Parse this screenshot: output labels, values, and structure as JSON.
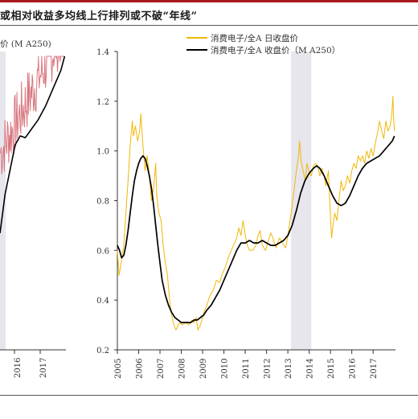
{
  "header": {
    "title_text": "或相对收益多均线上行排列或不破“年线”",
    "bar_color": "#a5191f"
  },
  "left_panel": {
    "legend_fragment": "价 (M A250)",
    "xticks": [
      "2016",
      "2017"
    ],
    "colors": {
      "daily": "#d9767f",
      "ma": "#000000"
    }
  },
  "chart_data": {
    "type": "line",
    "title": "",
    "xlabel": "",
    "ylabel": "",
    "ylim": [
      0.2,
      1.4
    ],
    "xlim": [
      2005.0,
      2018.05
    ],
    "yticks": [
      "0.2",
      "0.4",
      "0.6",
      "0.8",
      "1.0",
      "1.2",
      "1.4"
    ],
    "xticks": [
      "2005",
      "2006",
      "2007",
      "2008",
      "2009",
      "2010",
      "2011",
      "2012",
      "2013",
      "2014",
      "2015",
      "2016",
      "2017"
    ],
    "legend_position": "top",
    "shaded_periods": [
      [
        2013.15,
        2014.1
      ]
    ],
    "series": [
      {
        "name": "消费电子/全A 日收盘价",
        "color": "#f2b705",
        "points": [
          [
            2005.0,
            0.6
          ],
          [
            2005.08,
            0.5
          ],
          [
            2005.2,
            0.56
          ],
          [
            2005.3,
            0.62
          ],
          [
            2005.4,
            0.75
          ],
          [
            2005.5,
            0.88
          ],
          [
            2005.6,
            1.02
          ],
          [
            2005.7,
            1.12
          ],
          [
            2005.75,
            1.06
          ],
          [
            2005.85,
            1.1
          ],
          [
            2005.95,
            1.04
          ],
          [
            2006.05,
            1.08
          ],
          [
            2006.1,
            1.15
          ],
          [
            2006.2,
            1.02
          ],
          [
            2006.3,
            0.92
          ],
          [
            2006.4,
            0.98
          ],
          [
            2006.5,
            0.9
          ],
          [
            2006.6,
            0.8
          ],
          [
            2006.7,
            0.85
          ],
          [
            2006.8,
            0.95
          ],
          [
            2006.85,
            0.82
          ],
          [
            2006.95,
            0.75
          ],
          [
            2007.05,
            0.72
          ],
          [
            2007.15,
            0.62
          ],
          [
            2007.25,
            0.55
          ],
          [
            2007.35,
            0.5
          ],
          [
            2007.45,
            0.4
          ],
          [
            2007.55,
            0.34
          ],
          [
            2007.65,
            0.3
          ],
          [
            2007.75,
            0.28
          ],
          [
            2007.85,
            0.3
          ],
          [
            2007.95,
            0.31
          ],
          [
            2008.05,
            0.3
          ],
          [
            2008.2,
            0.31
          ],
          [
            2008.35,
            0.3
          ],
          [
            2008.5,
            0.32
          ],
          [
            2008.6,
            0.31
          ],
          [
            2008.7,
            0.33
          ],
          [
            2008.78,
            0.28
          ],
          [
            2008.9,
            0.3
          ],
          [
            2009.0,
            0.33
          ],
          [
            2009.1,
            0.36
          ],
          [
            2009.2,
            0.38
          ],
          [
            2009.35,
            0.42
          ],
          [
            2009.5,
            0.44
          ],
          [
            2009.65,
            0.48
          ],
          [
            2009.8,
            0.47
          ],
          [
            2009.9,
            0.5
          ],
          [
            2010.05,
            0.53
          ],
          [
            2010.2,
            0.57
          ],
          [
            2010.35,
            0.6
          ],
          [
            2010.5,
            0.63
          ],
          [
            2010.6,
            0.65
          ],
          [
            2010.7,
            0.69
          ],
          [
            2010.8,
            0.66
          ],
          [
            2010.9,
            0.72
          ],
          [
            2011.0,
            0.66
          ],
          [
            2011.1,
            0.62
          ],
          [
            2011.2,
            0.6
          ],
          [
            2011.35,
            0.6
          ],
          [
            2011.5,
            0.62
          ],
          [
            2011.6,
            0.66
          ],
          [
            2011.7,
            0.68
          ],
          [
            2011.8,
            0.62
          ],
          [
            2011.95,
            0.6
          ],
          [
            2012.05,
            0.63
          ],
          [
            2012.2,
            0.67
          ],
          [
            2012.3,
            0.65
          ],
          [
            2012.45,
            0.61
          ],
          [
            2012.6,
            0.65
          ],
          [
            2012.75,
            0.63
          ],
          [
            2012.9,
            0.61
          ],
          [
            2013.0,
            0.66
          ],
          [
            2013.1,
            0.72
          ],
          [
            2013.2,
            0.78
          ],
          [
            2013.3,
            0.85
          ],
          [
            2013.4,
            0.92
          ],
          [
            2013.5,
            0.98
          ],
          [
            2013.55,
            1.04
          ],
          [
            2013.62,
            0.96
          ],
          [
            2013.72,
            0.92
          ],
          [
            2013.82,
            0.88
          ],
          [
            2013.9,
            0.95
          ],
          [
            2013.98,
            0.92
          ],
          [
            2014.1,
            0.9
          ],
          [
            2014.2,
            0.94
          ],
          [
            2014.3,
            0.95
          ],
          [
            2014.4,
            0.94
          ],
          [
            2014.5,
            0.9
          ],
          [
            2014.6,
            0.93
          ],
          [
            2014.7,
            0.9
          ],
          [
            2014.78,
            0.86
          ],
          [
            2014.9,
            0.92
          ],
          [
            2015.0,
            0.74
          ],
          [
            2015.05,
            0.65
          ],
          [
            2015.12,
            0.7
          ],
          [
            2015.2,
            0.75
          ],
          [
            2015.3,
            0.72
          ],
          [
            2015.4,
            0.8
          ],
          [
            2015.5,
            0.88
          ],
          [
            2015.6,
            0.84
          ],
          [
            2015.7,
            0.86
          ],
          [
            2015.8,
            0.9
          ],
          [
            2015.9,
            0.87
          ],
          [
            2016.0,
            0.92
          ],
          [
            2016.1,
            0.95
          ],
          [
            2016.2,
            0.93
          ],
          [
            2016.3,
            0.98
          ],
          [
            2016.4,
            0.96
          ],
          [
            2016.5,
            0.98
          ],
          [
            2016.6,
            0.95
          ],
          [
            2016.7,
            1.0
          ],
          [
            2016.8,
            0.97
          ],
          [
            2016.9,
            1.01
          ],
          [
            2017.0,
            0.98
          ],
          [
            2017.1,
            1.03
          ],
          [
            2017.2,
            1.07
          ],
          [
            2017.3,
            1.12
          ],
          [
            2017.4,
            1.08
          ],
          [
            2017.5,
            1.05
          ],
          [
            2017.6,
            1.12
          ],
          [
            2017.7,
            1.08
          ],
          [
            2017.8,
            1.1
          ],
          [
            2017.88,
            1.15
          ],
          [
            2017.93,
            1.22
          ],
          [
            2017.97,
            1.12
          ],
          [
            2018.0,
            1.08
          ]
        ]
      },
      {
        "name": "消费电子/全A 收盘价（M A250）",
        "color": "#000000",
        "points": [
          [
            2005.0,
            0.62
          ],
          [
            2005.1,
            0.6
          ],
          [
            2005.2,
            0.57
          ],
          [
            2005.3,
            0.58
          ],
          [
            2005.4,
            0.62
          ],
          [
            2005.5,
            0.68
          ],
          [
            2005.6,
            0.75
          ],
          [
            2005.7,
            0.82
          ],
          [
            2005.8,
            0.88
          ],
          [
            2005.9,
            0.92
          ],
          [
            2006.0,
            0.95
          ],
          [
            2006.1,
            0.97
          ],
          [
            2006.2,
            0.98
          ],
          [
            2006.3,
            0.97
          ],
          [
            2006.4,
            0.94
          ],
          [
            2006.5,
            0.9
          ],
          [
            2006.6,
            0.85
          ],
          [
            2006.7,
            0.78
          ],
          [
            2006.8,
            0.7
          ],
          [
            2006.9,
            0.62
          ],
          [
            2007.0,
            0.55
          ],
          [
            2007.1,
            0.48
          ],
          [
            2007.25,
            0.42
          ],
          [
            2007.4,
            0.38
          ],
          [
            2007.55,
            0.35
          ],
          [
            2007.7,
            0.33
          ],
          [
            2007.85,
            0.32
          ],
          [
            2008.0,
            0.31
          ],
          [
            2008.15,
            0.31
          ],
          [
            2008.3,
            0.31
          ],
          [
            2008.45,
            0.31
          ],
          [
            2008.6,
            0.32
          ],
          [
            2008.75,
            0.32
          ],
          [
            2008.9,
            0.33
          ],
          [
            2009.05,
            0.34
          ],
          [
            2009.2,
            0.36
          ],
          [
            2009.4,
            0.38
          ],
          [
            2009.6,
            0.41
          ],
          [
            2009.8,
            0.44
          ],
          [
            2010.0,
            0.48
          ],
          [
            2010.2,
            0.52
          ],
          [
            2010.4,
            0.56
          ],
          [
            2010.6,
            0.6
          ],
          [
            2010.8,
            0.63
          ],
          [
            2011.0,
            0.63
          ],
          [
            2011.2,
            0.64
          ],
          [
            2011.4,
            0.63
          ],
          [
            2011.6,
            0.63
          ],
          [
            2011.8,
            0.64
          ],
          [
            2012.0,
            0.63
          ],
          [
            2012.2,
            0.62
          ],
          [
            2012.4,
            0.62
          ],
          [
            2012.6,
            0.63
          ],
          [
            2012.8,
            0.64
          ],
          [
            2013.0,
            0.66
          ],
          [
            2013.2,
            0.7
          ],
          [
            2013.4,
            0.76
          ],
          [
            2013.6,
            0.83
          ],
          [
            2013.8,
            0.88
          ],
          [
            2014.0,
            0.91
          ],
          [
            2014.2,
            0.93
          ],
          [
            2014.35,
            0.94
          ],
          [
            2014.5,
            0.93
          ],
          [
            2014.7,
            0.9
          ],
          [
            2014.9,
            0.86
          ],
          [
            2015.1,
            0.82
          ],
          [
            2015.3,
            0.79
          ],
          [
            2015.5,
            0.78
          ],
          [
            2015.7,
            0.79
          ],
          [
            2015.9,
            0.82
          ],
          [
            2016.1,
            0.86
          ],
          [
            2016.3,
            0.9
          ],
          [
            2016.5,
            0.93
          ],
          [
            2016.7,
            0.95
          ],
          [
            2016.9,
            0.96
          ],
          [
            2017.1,
            0.97
          ],
          [
            2017.3,
            0.98
          ],
          [
            2017.5,
            1.0
          ],
          [
            2017.7,
            1.02
          ],
          [
            2017.9,
            1.04
          ],
          [
            2018.0,
            1.06
          ]
        ]
      }
    ]
  }
}
